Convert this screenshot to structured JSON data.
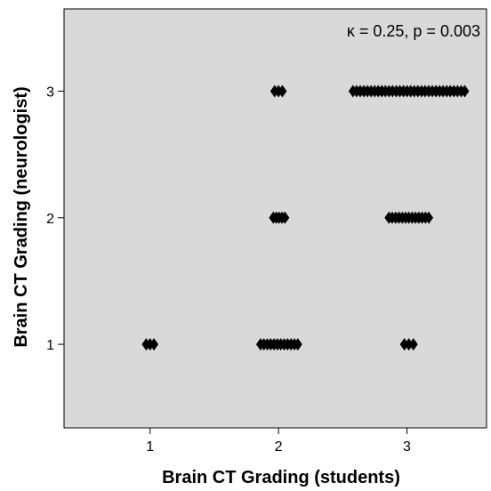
{
  "chart_data": {
    "type": "scatter",
    "xlabel": "Brain CT Grading (students)",
    "ylabel": "Brain CT Grading (neurologist)",
    "annotation": "κ = 0.25, p = 0.003",
    "xlim": [
      0.33,
      3.62
    ],
    "ylim": [
      0.34,
      3.65
    ],
    "xticks": [
      1,
      2,
      3
    ],
    "yticks": [
      1,
      2,
      3
    ],
    "grid": false,
    "plot_background": "#d9d9d9",
    "marker_color": "#000000",
    "marker": "diamond",
    "clusters": [
      {
        "x_from": 0.97,
        "x_to": 1.03,
        "y": 1,
        "count": 3
      },
      {
        "x_from": 1.86,
        "x_to": 2.15,
        "y": 1,
        "count": 12
      },
      {
        "x_from": 2.98,
        "x_to": 3.05,
        "y": 1,
        "count": 3
      },
      {
        "x_from": 1.96,
        "x_to": 2.05,
        "y": 2,
        "count": 5
      },
      {
        "x_from": 2.86,
        "x_to": 3.17,
        "y": 2,
        "count": 13
      },
      {
        "x_from": 1.97,
        "x_to": 2.03,
        "y": 3,
        "count": 3
      },
      {
        "x_from": 2.58,
        "x_to": 3.45,
        "y": 3,
        "count": 32
      }
    ]
  }
}
